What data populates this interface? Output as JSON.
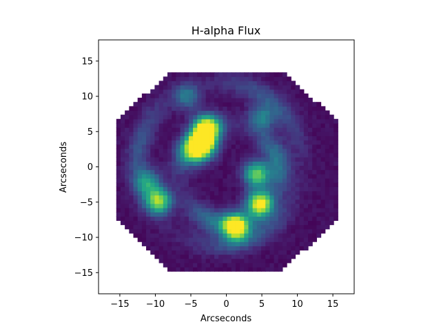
{
  "chart_data": {
    "type": "heatmap",
    "title": "H-alpha Flux",
    "xlabel": "Arcseconds",
    "ylabel": "Arcseconds",
    "xlim": [
      -18,
      18
    ],
    "ylim": [
      -18,
      18
    ],
    "xticks": [
      -15,
      -10,
      -5,
      0,
      5,
      10,
      15
    ],
    "yticks": [
      -15,
      -10,
      -5,
      0,
      5,
      10,
      15
    ],
    "grid": false,
    "colormap": "viridis",
    "footprint": {
      "shape": "hexagon",
      "x_range": [
        -15.5,
        15.5
      ],
      "y_range": [
        -14.8,
        13.5
      ]
    },
    "features": [
      {
        "kind": "peak",
        "x": -2.8,
        "y": 5.5,
        "peak": 1.0
      },
      {
        "kind": "peak",
        "x": -3.2,
        "y": 3.2,
        "peak": 0.95
      },
      {
        "kind": "peak",
        "x": -4.5,
        "y": 2.2,
        "peak": 0.6
      },
      {
        "kind": "peak",
        "x": 4.7,
        "y": -5.2,
        "peak": 1.0
      },
      {
        "kind": "peak",
        "x": 4.3,
        "y": -1.0,
        "peak": 0.75
      },
      {
        "kind": "peak",
        "x": 1.3,
        "y": -8.5,
        "peak": 1.0
      },
      {
        "kind": "peak",
        "x": -9.5,
        "y": -4.8,
        "peak": 0.8
      },
      {
        "kind": "peak",
        "x": -11.0,
        "y": -2.2,
        "peak": 0.45
      },
      {
        "kind": "peak",
        "x": 5.0,
        "y": 7.0,
        "peak": 0.4
      },
      {
        "kind": "peak",
        "x": -5.5,
        "y": 10.0,
        "peak": 0.35
      },
      {
        "kind": "ring",
        "x": 0.5,
        "y": -1.0,
        "radius": 7.0,
        "level": 0.35
      },
      {
        "kind": "ring",
        "x": -1.0,
        "y": 0.5,
        "radius": 11.5,
        "level": 0.22
      }
    ]
  }
}
